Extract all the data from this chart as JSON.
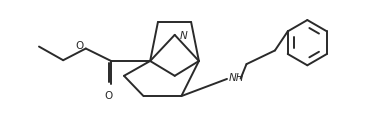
{
  "bg_color": "#ffffff",
  "line_color": "#2a2a2a",
  "line_width": 1.4,
  "fig_width": 3.9,
  "fig_height": 1.22,
  "dpi": 100,
  "xlim": [
    0,
    10
  ],
  "ylim": [
    0,
    2.56
  ],
  "N_label": "N",
  "NH_label": "NH",
  "O_label": "O",
  "O2_label": "O"
}
